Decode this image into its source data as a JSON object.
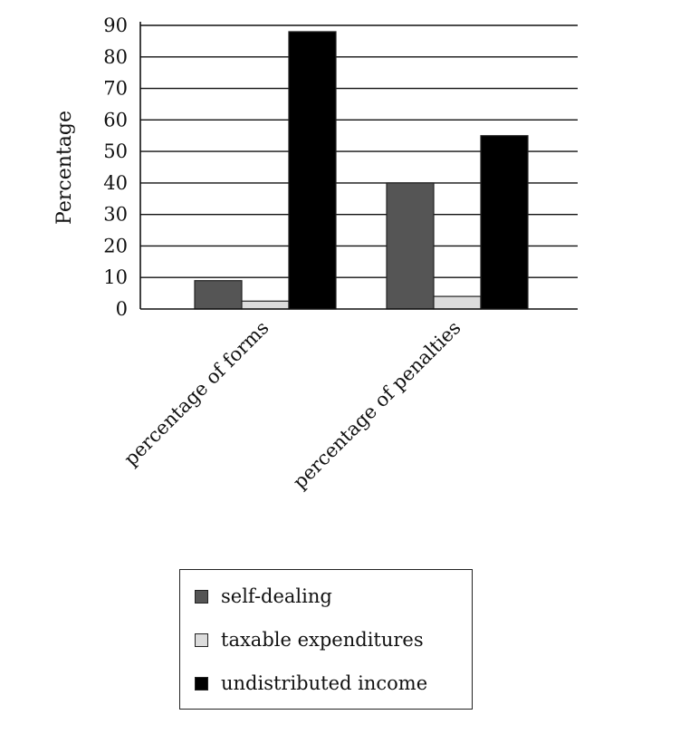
{
  "chart_data": {
    "type": "bar",
    "title": "",
    "xlabel": "",
    "ylabel": "Percentage",
    "ylim": [
      0,
      90
    ],
    "yticks": [
      0,
      10,
      20,
      30,
      40,
      50,
      60,
      70,
      80,
      90
    ],
    "categories": [
      "percentage of forms",
      "percentage of penalties"
    ],
    "series": [
      {
        "name": "self-dealing",
        "color": "#555555",
        "values": [
          9,
          40
        ]
      },
      {
        "name": "taxable expenditures",
        "color": "#dcdcdc",
        "values": [
          2.5,
          4
        ]
      },
      {
        "name": "undistributed income",
        "color": "#000000",
        "values": [
          88,
          55
        ]
      }
    ],
    "grid": true,
    "legend_position": "bottom"
  }
}
